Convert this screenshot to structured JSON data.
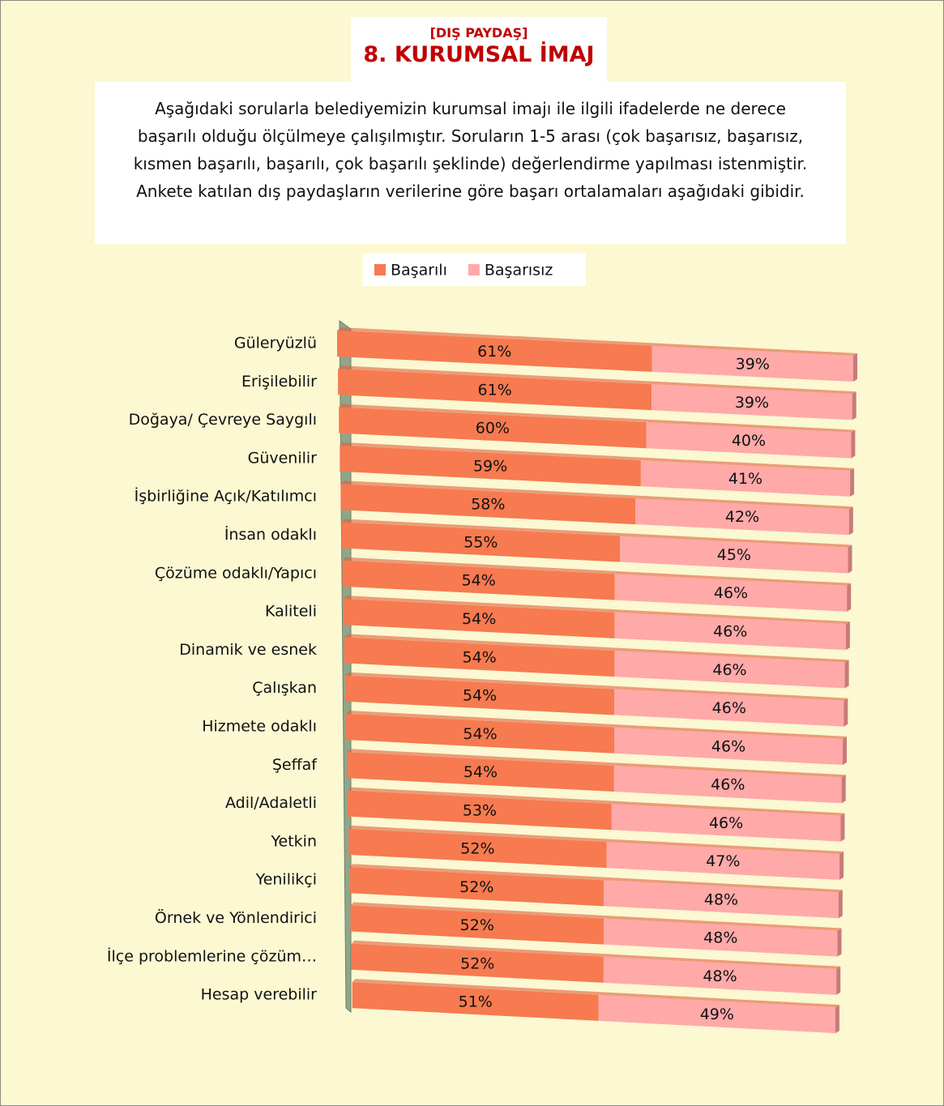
{
  "chart_data": {
    "type": "stacked-bar-3d",
    "subtitle": "[DIŞ PAYDAŞ]",
    "title": "8. KURUMSAL İMAJ",
    "description": "Aşağıdaki sorularla belediyemizin kurumsal imajı ile ilgili ifadelerde ne derece başarılı olduğu ölçülmeye çalışılmıştır. Soruların 1-5 arası (çok başarısız, başarısız, kısmen başarılı, başarılı, çok başarılı şeklinde) değerlendirme yapılması istenmiştir. Ankete katılan dış paydaşların verilerine göre başarı ortalamaları aşağıdaki gibidir.",
    "categories": [
      "Güleryüzlü",
      "Erişilebilir",
      "Doğaya/ Çevreye Saygılı",
      "Güvenilir",
      "İşbirliğine Açık/Katılımcı",
      "İnsan odaklı",
      "Çözüme odaklı/Yapıcı",
      "Kaliteli",
      "Dinamik ve esnek",
      "Çalışkan",
      "Hizmete odaklı",
      "Şeffaf",
      "Adil/Adaletli",
      "Yetkin",
      "Yenilikçi",
      "Örnek ve Yönlendirici",
      "İlçe problemlerine çözüm…",
      "Hesap verebilir"
    ],
    "series": [
      {
        "name": "Başarılı",
        "color": "#f77a50",
        "values": [
          61,
          61,
          60,
          59,
          58,
          55,
          54,
          54,
          54,
          54,
          54,
          54,
          53,
          52,
          52,
          52,
          52,
          51
        ],
        "value_labels": [
          "61%",
          "61%",
          "60%",
          "59%",
          "58%",
          "55%",
          "54%",
          "54%",
          "54%",
          "54%",
          "54%",
          "54%",
          "53%",
          "52%",
          "52%",
          "52%",
          "52%",
          "51%"
        ]
      },
      {
        "name": "Başarısız",
        "color": "#ffa9a9",
        "values": [
          39,
          39,
          40,
          41,
          42,
          45,
          46,
          46,
          46,
          46,
          46,
          46,
          46,
          47,
          48,
          48,
          48,
          49
        ],
        "value_labels": [
          "39%",
          "39%",
          "40%",
          "41%",
          "42%",
          "45%",
          "46%",
          "46%",
          "46%",
          "46%",
          "46%",
          "46%",
          "46%",
          "47%",
          "48%",
          "48%",
          "48%",
          "49%"
        ]
      }
    ],
    "legend": "top"
  }
}
